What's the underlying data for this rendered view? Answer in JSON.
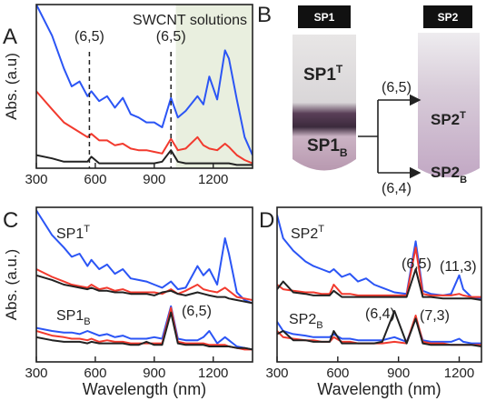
{
  "chart_data": [
    {
      "type": "line",
      "panel_label": "A",
      "y_label": "Abs. (a.u)",
      "annotation": "SWCNT solutions",
      "xlim": [
        300,
        1400
      ],
      "ylim": [
        0,
        1
      ],
      "xticks": [
        300,
        600,
        900,
        1200
      ],
      "markers": [
        {
          "label": "(6,5)",
          "x": 570
        },
        {
          "label": "(6,5)",
          "x": 985
        }
      ],
      "shade": [
        1010,
        1400
      ],
      "shade_color": "#e9efdf",
      "x": [
        300,
        380,
        440,
        480,
        520,
        560,
        580,
        620,
        660,
        700,
        740,
        780,
        820,
        860,
        900,
        940,
        985,
        1020,
        1060,
        1120,
        1150,
        1180,
        1220,
        1260,
        1280,
        1320,
        1360,
        1400
      ],
      "series": [
        {
          "color": "#2b55f5",
          "values": [
            1.0,
            0.81,
            0.61,
            0.5,
            0.53,
            0.44,
            0.47,
            0.41,
            0.44,
            0.37,
            0.43,
            0.33,
            0.31,
            0.28,
            0.28,
            0.25,
            0.43,
            0.31,
            0.35,
            0.44,
            0.39,
            0.56,
            0.42,
            0.72,
            0.67,
            0.42,
            0.19,
            0.08
          ]
        },
        {
          "color": "#f23a2e",
          "values": [
            0.47,
            0.36,
            0.28,
            0.25,
            0.22,
            0.19,
            0.21,
            0.17,
            0.17,
            0.14,
            0.15,
            0.12,
            0.11,
            0.11,
            0.1,
            0.09,
            0.18,
            0.11,
            0.12,
            0.19,
            0.14,
            0.12,
            0.11,
            0.15,
            0.13,
            0.08,
            0.05,
            0.03
          ]
        },
        {
          "color": "#222222",
          "values": [
            0.08,
            0.06,
            0.04,
            0.04,
            0.04,
            0.04,
            0.07,
            0.03,
            0.03,
            0.03,
            0.03,
            0.03,
            0.03,
            0.03,
            0.03,
            0.04,
            0.11,
            0.04,
            0.03,
            0.03,
            0.03,
            0.03,
            0.03,
            0.03,
            0.03,
            0.02,
            0.02,
            0.02
          ]
        }
      ]
    },
    {
      "type": "line",
      "panel_label": "C",
      "y_label": "Abs. (a.u.)",
      "x_label": "Wavelength (nm)",
      "xlim": [
        300,
        1400
      ],
      "ylim": [
        0,
        1
      ],
      "xticks": [
        300,
        600,
        900,
        1200
      ],
      "labels": [
        {
          "text": "SP1",
          "sup": "T"
        },
        {
          "text": "SP1",
          "sub": "B"
        },
        {
          "text": "(6,5)"
        }
      ],
      "x": [
        300,
        380,
        440,
        480,
        520,
        560,
        580,
        620,
        660,
        700,
        740,
        780,
        820,
        860,
        900,
        940,
        985,
        1020,
        1060,
        1120,
        1150,
        1180,
        1220,
        1260,
        1280,
        1320,
        1360,
        1400
      ],
      "series": [
        {
          "color": "#2b55f5",
          "values": [
            0.98,
            0.82,
            0.74,
            0.68,
            0.7,
            0.62,
            0.66,
            0.6,
            0.63,
            0.57,
            0.6,
            0.54,
            0.53,
            0.52,
            0.5,
            0.48,
            0.52,
            0.47,
            0.48,
            0.62,
            0.56,
            0.6,
            0.5,
            0.8,
            0.7,
            0.45,
            0.4,
            0.38
          ]
        },
        {
          "color": "#f23a2e",
          "values": [
            0.6,
            0.55,
            0.52,
            0.5,
            0.49,
            0.48,
            0.5,
            0.47,
            0.48,
            0.46,
            0.47,
            0.45,
            0.45,
            0.45,
            0.45,
            0.44,
            0.47,
            0.44,
            0.46,
            0.5,
            0.47,
            0.46,
            0.45,
            0.48,
            0.46,
            0.42,
            0.41,
            0.4
          ]
        },
        {
          "color": "#222222",
          "values": [
            0.56,
            0.53,
            0.5,
            0.49,
            0.48,
            0.47,
            0.48,
            0.46,
            0.46,
            0.45,
            0.45,
            0.44,
            0.44,
            0.44,
            0.43,
            0.45,
            0.46,
            0.44,
            0.43,
            0.45,
            0.44,
            0.43,
            0.42,
            0.42,
            0.41,
            0.4,
            0.39,
            0.38
          ]
        },
        {
          "color": "#2b55f5",
          "values": [
            0.22,
            0.2,
            0.19,
            0.19,
            0.18,
            0.2,
            0.19,
            0.17,
            0.18,
            0.16,
            0.17,
            0.15,
            0.15,
            0.15,
            0.16,
            0.15,
            0.36,
            0.15,
            0.14,
            0.14,
            0.16,
            0.2,
            0.12,
            0.16,
            0.14,
            0.1,
            0.09,
            0.08
          ]
        },
        {
          "color": "#f23a2e",
          "values": [
            0.2,
            0.17,
            0.16,
            0.15,
            0.15,
            0.14,
            0.15,
            0.13,
            0.14,
            0.13,
            0.13,
            0.12,
            0.12,
            0.12,
            0.12,
            0.12,
            0.35,
            0.13,
            0.12,
            0.12,
            0.12,
            0.11,
            0.11,
            0.11,
            0.1,
            0.09,
            0.08,
            0.08
          ]
        },
        {
          "color": "#222222",
          "values": [
            0.16,
            0.14,
            0.13,
            0.13,
            0.13,
            0.12,
            0.13,
            0.12,
            0.12,
            0.12,
            0.12,
            0.11,
            0.11,
            0.13,
            0.11,
            0.11,
            0.32,
            0.12,
            0.11,
            0.11,
            0.11,
            0.1,
            0.1,
            0.1,
            0.1,
            0.09,
            0.09,
            0.08
          ]
        }
      ]
    },
    {
      "type": "line",
      "panel_label": "D",
      "x_label": "Wavelength (nm)",
      "xlim": [
        300,
        1310
      ],
      "ylim": [
        0,
        1
      ],
      "xticks": [
        300,
        600,
        900,
        1200
      ],
      "labels": [
        {
          "text": "SP2",
          "sup": "T"
        },
        {
          "text": "(6,5)"
        },
        {
          "text": "(11,3)"
        },
        {
          "text": "SP2",
          "sub": "B"
        },
        {
          "text": "(6,4)"
        },
        {
          "text": "(7,3)"
        }
      ],
      "x": [
        300,
        330,
        380,
        440,
        480,
        520,
        560,
        580,
        620,
        660,
        700,
        740,
        780,
        820,
        880,
        940,
        985,
        1020,
        1060,
        1120,
        1160,
        1200,
        1220,
        1260,
        1310
      ],
      "series": [
        {
          "color": "#2b55f5",
          "values": [
            0.95,
            0.8,
            0.72,
            0.65,
            0.62,
            0.6,
            0.58,
            0.6,
            0.55,
            0.57,
            0.52,
            0.54,
            0.5,
            0.48,
            0.45,
            0.44,
            0.78,
            0.46,
            0.44,
            0.43,
            0.44,
            0.56,
            0.47,
            0.42,
            0.41
          ]
        },
        {
          "color": "#f23a2e",
          "values": [
            0.5,
            0.47,
            0.46,
            0.45,
            0.45,
            0.44,
            0.44,
            0.5,
            0.44,
            0.44,
            0.43,
            0.43,
            0.43,
            0.43,
            0.43,
            0.43,
            0.74,
            0.44,
            0.43,
            0.43,
            0.43,
            0.44,
            0.43,
            0.42,
            0.42
          ]
        },
        {
          "color": "#222222",
          "values": [
            0.47,
            0.52,
            0.45,
            0.44,
            0.43,
            0.43,
            0.43,
            0.46,
            0.42,
            0.42,
            0.42,
            0.42,
            0.42,
            0.42,
            0.42,
            0.42,
            0.6,
            0.42,
            0.42,
            0.41,
            0.41,
            0.41,
            0.41,
            0.41,
            0.4
          ]
        },
        {
          "color": "#2b55f5",
          "values": [
            0.26,
            0.2,
            0.18,
            0.17,
            0.16,
            0.16,
            0.16,
            0.18,
            0.15,
            0.15,
            0.14,
            0.14,
            0.14,
            0.14,
            0.16,
            0.13,
            0.28,
            0.14,
            0.13,
            0.13,
            0.13,
            0.15,
            0.13,
            0.12,
            0.12
          ]
        },
        {
          "color": "#f23a2e",
          "values": [
            0.2,
            0.16,
            0.15,
            0.14,
            0.14,
            0.13,
            0.13,
            0.16,
            0.13,
            0.13,
            0.12,
            0.12,
            0.12,
            0.12,
            0.13,
            0.12,
            0.3,
            0.13,
            0.12,
            0.12,
            0.11,
            0.11,
            0.11,
            0.11,
            0.11
          ]
        },
        {
          "color": "#222222",
          "values": [
            0.18,
            0.2,
            0.14,
            0.14,
            0.13,
            0.13,
            0.13,
            0.2,
            0.12,
            0.12,
            0.12,
            0.12,
            0.12,
            0.13,
            0.33,
            0.12,
            0.28,
            0.12,
            0.11,
            0.11,
            0.11,
            0.11,
            0.11,
            0.11,
            0.1
          ]
        }
      ]
    }
  ],
  "diagram": {
    "panel_label": "B",
    "vial1": "SP1",
    "vial2": "SP2",
    "sp1_top": {
      "text": "SP1",
      "sup": "T"
    },
    "sp1_bottom": {
      "text": "SP1",
      "sub": "B"
    },
    "sp2_top": {
      "text": "SP2",
      "sup": "T"
    },
    "sp2_bottom": {
      "text": "SP2",
      "sub": "B"
    },
    "arrow_top": "(6,5)",
    "arrow_bottom": "(6,4)"
  }
}
